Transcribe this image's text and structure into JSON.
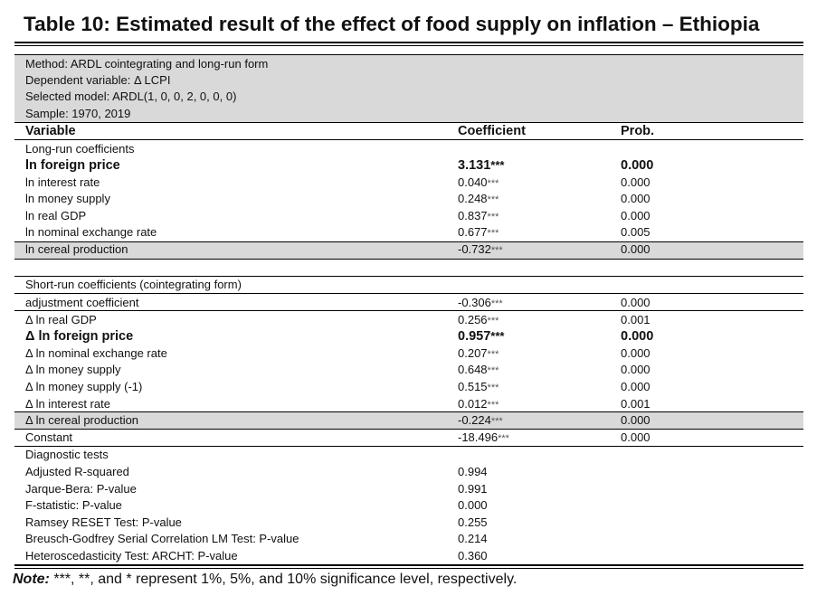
{
  "title": "Table 10: Estimated result of the effect of food supply on inflation – Ethiopia",
  "meta": {
    "method": "Method: ARDL cointegrating and long-run form",
    "dependent": "Dependent variable: Δ LCPI",
    "selected": "Selected model: ARDL(1, 0, 0, 2, 0, 0, 0)",
    "sample": "Sample: 1970, 2019"
  },
  "headers": {
    "variable": "Variable",
    "coefficient": "Coefficient",
    "prob": "Prob."
  },
  "long_run": {
    "label": "Long-run coefficients",
    "rows": [
      {
        "var": "ln foreign price",
        "coef": "3.131",
        "stars": "***",
        "prob": "0.000"
      },
      {
        "var": "ln interest rate",
        "coef": "0.040",
        "stars": "***",
        "prob": "0.000"
      },
      {
        "var": "ln money supply",
        "coef": "0.248",
        "stars": "***",
        "prob": "0.000"
      },
      {
        "var": "ln real GDP",
        "coef": "0.837",
        "stars": "***",
        "prob": "0.000"
      },
      {
        "var": "ln nominal exchange rate",
        "coef": "0.677",
        "stars": "***",
        "prob": "0.005"
      },
      {
        "var": "ln cereal production",
        "coef": "-0.732",
        "stars": "***",
        "prob": "0.000"
      }
    ]
  },
  "short_run": {
    "label": "Short-run coefficients (cointegrating form)",
    "rows": [
      {
        "var": "adjustment coefficient",
        "coef": "-0.306",
        "stars": "***",
        "prob": "0.000"
      },
      {
        "var": "Δ ln real GDP",
        "coef": "0.256",
        "stars": "***",
        "prob": "0.001"
      },
      {
        "var": "Δ ln foreign price",
        "coef": "0.957",
        "stars": "***",
        "prob": "0.000"
      },
      {
        "var": "Δ ln nominal exchange rate",
        "coef": "0.207",
        "stars": "***",
        "prob": "0.000"
      },
      {
        "var": "Δ ln money supply",
        "coef": "0.648",
        "stars": "***",
        "prob": "0.000"
      },
      {
        "var": "Δ ln money supply (-1)",
        "coef": "0.515",
        "stars": "***",
        "prob": "0.000"
      },
      {
        "var": "Δ ln interest rate",
        "coef": "0.012",
        "stars": "***",
        "prob": "0.001"
      },
      {
        "var": "Δ ln cereal production",
        "coef": "-0.224",
        "stars": "***",
        "prob": "0.000"
      },
      {
        "var": "Constant",
        "coef": "-18.496",
        "stars": "***",
        "prob": "0.000"
      }
    ]
  },
  "diagnostics": {
    "label": "Diagnostic tests",
    "rows": [
      {
        "var": "Adjusted R-squared",
        "value": "0.994"
      },
      {
        "var": "Jarque-Bera: P-value",
        "value": "0.991"
      },
      {
        "var": "F-statistic: P-value",
        "value": "0.000"
      },
      {
        "var": "Ramsey RESET Test: P-value",
        "value": "0.255"
      },
      {
        "var": "Breusch-Godfrey Serial Correlation LM Test: P-value",
        "value": "0.214"
      },
      {
        "var": "Heteroscedasticity Test: ARCHT: P-value",
        "value": "0.360"
      }
    ]
  },
  "note": {
    "label": "Note:",
    "text": " ***, **, and * represent 1%, 5%, and 10% significance level, respectively."
  }
}
